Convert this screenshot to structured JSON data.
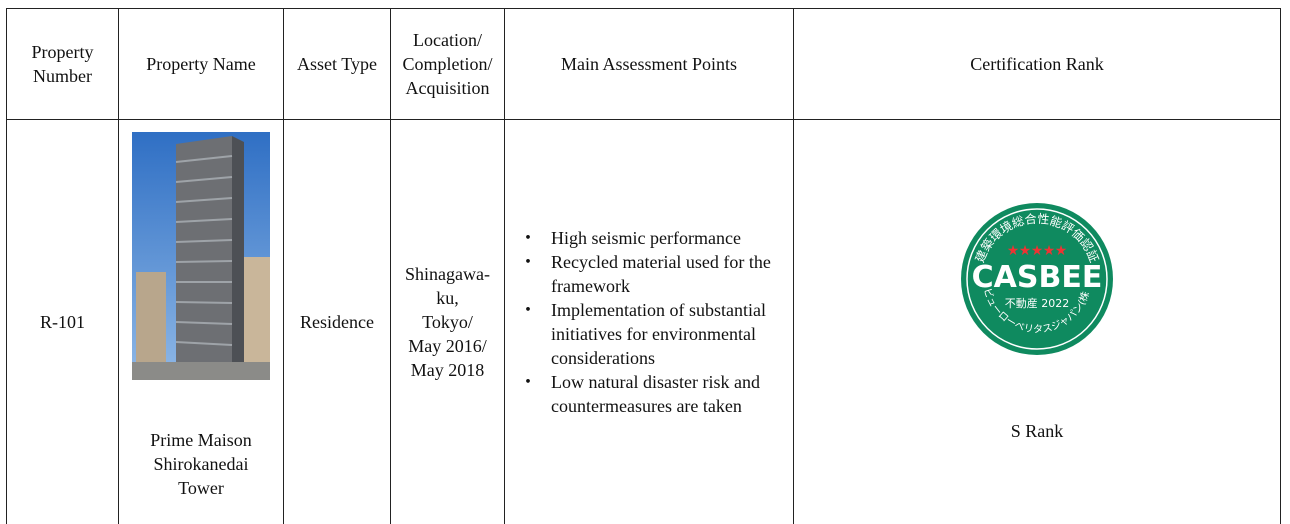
{
  "table": {
    "headers": [
      "Property Number",
      "Property Name",
      "Asset Type",
      [
        "Location/",
        "Completion/",
        "Acquisition"
      ],
      "Main Assessment Points",
      "Certification Rank"
    ],
    "row": {
      "number": "R-101",
      "name": [
        "Prime Maison",
        "Shirokanedai",
        "Tower"
      ],
      "asset_type": "Residence",
      "location": [
        "Shinagawa-ku,",
        "Tokyo/",
        "May 2016/",
        "May 2018"
      ],
      "points": [
        "High seismic performance",
        "Recycled material used for the framework",
        "Implementation of substantial initiatives for environmental considerations",
        "Low natural disaster risk and countermeasures are taken"
      ],
      "rank": "S Rank",
      "logo": {
        "top": "建築環境総合性能評価認証",
        "brand": "CASBEE",
        "middle": "不動産 2022",
        "bottom": "ビューローベリタスジャパン(株)"
      }
    }
  }
}
